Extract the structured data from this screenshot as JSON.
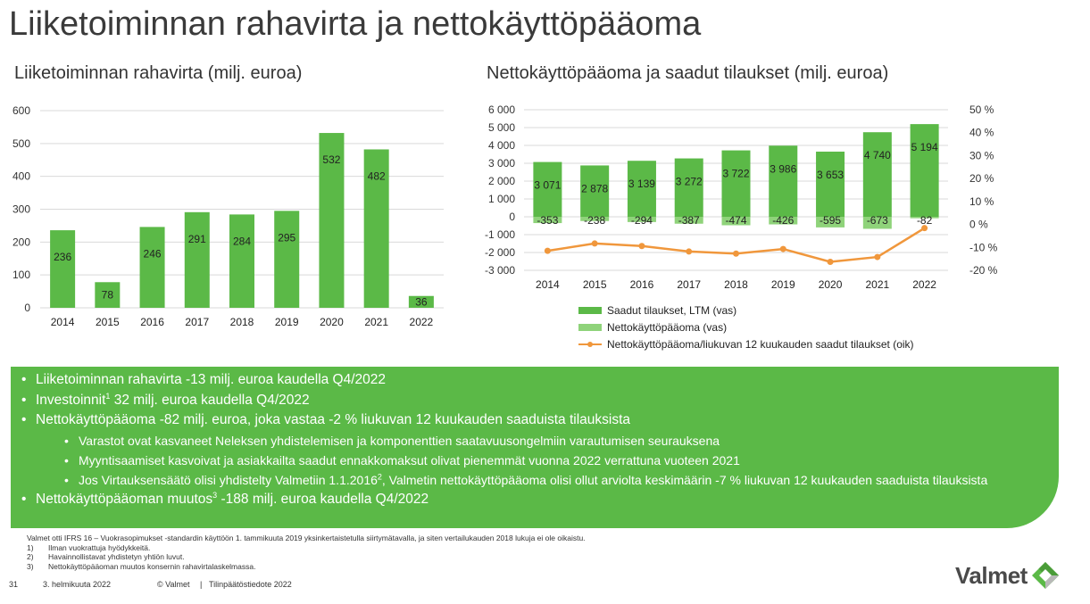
{
  "page": {
    "title": "Liiketoiminnan rahavirta ja nettokäyttöpääoma"
  },
  "left_chart_title": "Liiketoiminnan rahavirta (milj. euroa)",
  "right_chart_title": "Nettokäyttöpääoma ja saadut tilaukset (milj. euroa)",
  "chart_data": [
    {
      "type": "bar",
      "title": "Liiketoiminnan rahavirta (milj. euroa)",
      "categories": [
        "2014",
        "2015",
        "2016",
        "2017",
        "2018",
        "2019",
        "2020",
        "2021",
        "2022"
      ],
      "values": [
        236,
        78,
        246,
        291,
        284,
        295,
        532,
        482,
        36
      ],
      "value_labels": [
        "236",
        "78",
        "246",
        "291",
        "284",
        "295",
        "532",
        "482",
        "36"
      ],
      "ylim": [
        0,
        600
      ],
      "yticks": [
        "0",
        "100",
        "200",
        "300",
        "400",
        "500",
        "600"
      ],
      "grid": true,
      "color": "#5bb947"
    },
    {
      "type": "bar",
      "title": "Nettokäyttöpääoma ja saadut tilaukset (milj. euroa)",
      "categories": [
        "2014",
        "2015",
        "2016",
        "2017",
        "2018",
        "2019",
        "2020",
        "2021",
        "2022"
      ],
      "series": [
        {
          "name": "Saadut tilaukset, LTM (vas)",
          "values": [
            3071,
            2878,
            3139,
            3272,
            3722,
            3986,
            3653,
            4740,
            5194
          ],
          "value_labels": [
            "3 071",
            "2 878",
            "3 139",
            "3 272",
            "3 722",
            "3 986",
            "3 653",
            "4 740",
            "5 194"
          ],
          "color": "#5bb947",
          "axis": "left"
        },
        {
          "name": "Nettokäyttöpääoma (vas)",
          "values": [
            -353,
            -238,
            -294,
            -387,
            -474,
            -426,
            -595,
            -673,
            -82
          ],
          "value_labels": [
            "-353",
            "-238",
            "-294",
            "-387",
            "-474",
            "-426",
            "-595",
            "-673",
            "-82"
          ],
          "color": "#8fd37a",
          "axis": "left"
        },
        {
          "name": "Nettokäyttöpääoma/liukuvan 12 kuukauden saadut tilaukset (oik)",
          "type": "line",
          "values": [
            -11.5,
            -8.3,
            -9.4,
            -11.8,
            -12.7,
            -10.7,
            -16.3,
            -14.2,
            -1.6
          ],
          "color": "#f0973c",
          "axis": "right"
        }
      ],
      "ylim_left": [
        -3000,
        6000
      ],
      "ylim_right": [
        -20,
        50
      ],
      "yticks_left": [
        "-3 000",
        "-2 000",
        "-1 000",
        "0",
        "1 000",
        "2 000",
        "3 000",
        "4 000",
        "5 000",
        "6 000"
      ],
      "yticks_right": [
        "-20 %",
        "-10 %",
        "0 %",
        "10 %",
        "20 %",
        "30 %",
        "40 %",
        "50 %"
      ],
      "grid": true,
      "legend_position": "bottom"
    }
  ],
  "bullets": {
    "b1": "Liiketoiminnan rahavirta -13 milj. euroa kaudella Q4/2022",
    "b2_pre": "Investoinnit",
    "b2_sup": "1",
    "b2_post": " 32 milj. euroa kaudella Q4/2022",
    "b3": "Nettokäyttöpääoma -82 milj. euroa, joka vastaa -2 % liukuvan 12 kuukauden saaduista tilauksista",
    "b3a": "Varastot ovat kasvaneet Neleksen yhdistelemisen ja komponenttien saatavuusongelmiin varautumisen seurauksena",
    "b3b": "Myyntisaamiset kasvoivat ja asiakkailta saadut ennakkomaksut olivat pienemmät vuonna 2022 verrattuna vuoteen 2021",
    "b3c_pre": "Jos Virtauksensäätö olisi yhdistelty Valmetiin 1.1.2016",
    "b3c_sup": "2",
    "b3c_post": ", Valmetin nettokäyttöpääoma olisi ollut arviolta keskimäärin -7 % liukuvan 12 kuukauden saaduista tilauksista",
    "b4_pre": "Nettokäyttöpääoman muutos",
    "b4_sup": "3",
    "b4_post": " -188 milj. euroa kaudella Q4/2022"
  },
  "footnotes": {
    "intro": "Valmet otti IFRS 16 – Vuokrasopimukset -standardin käyttöön 1. tammikuuta 2019 yksinkertaistetulla siirtymätavalla, ja siten vertailukauden 2018 lukuja ei ole oikaistu.",
    "items": [
      {
        "num": "1)",
        "text": "Ilman vuokrattuja hyödykkeitä."
      },
      {
        "num": "2)",
        "text": "Havainnollistavat yhdistetyn yhtiön luvut."
      },
      {
        "num": "3)",
        "text": "Nettokäyttöpääoman muutos konsernin rahavirtalaskelmassa."
      }
    ]
  },
  "footer": {
    "page_number": "31",
    "date": "3. helmikuuta 2022",
    "copyright": "© Valmet",
    "separator": "|",
    "document": "Tilinpäätöstiedote 2022"
  },
  "logo": {
    "text": "Valmet",
    "colors": [
      "#5bb947",
      "#8a8a8a"
    ]
  }
}
